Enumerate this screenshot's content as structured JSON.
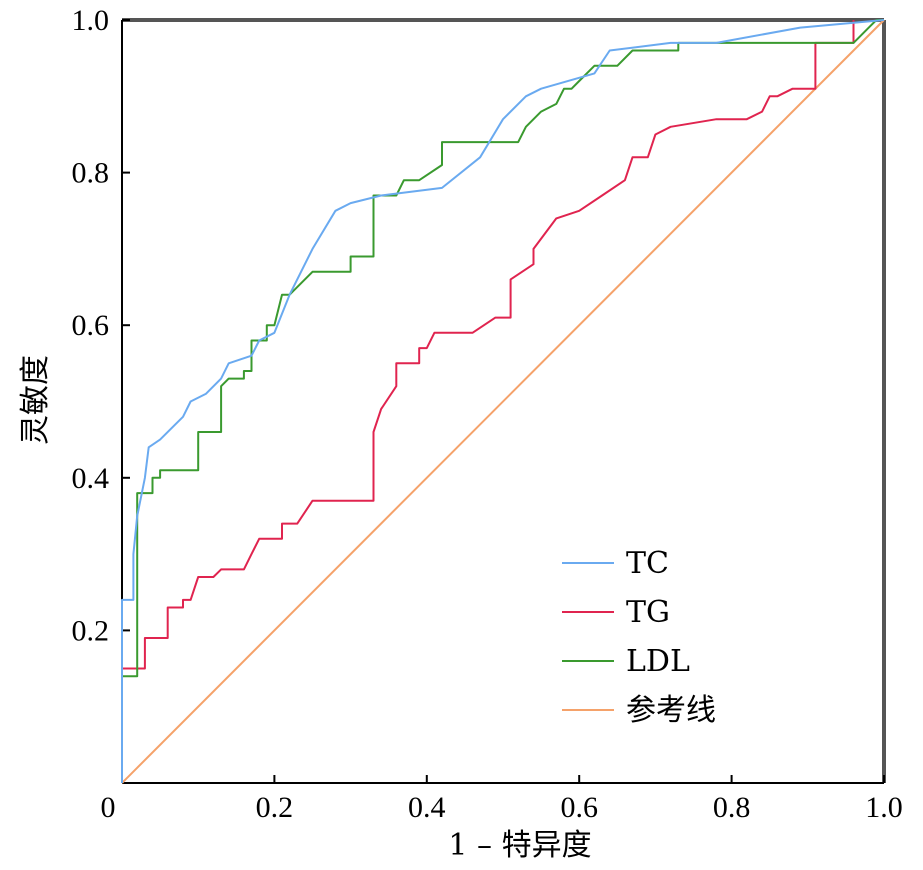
{
  "chart_data": {
    "type": "line",
    "title": "",
    "xlabel": "1 – 特异度",
    "ylabel": "灵敏度",
    "xlim": [
      0,
      1
    ],
    "ylim": [
      0,
      1
    ],
    "x_ticks": [
      "0",
      "0.2",
      "0.4",
      "0.6",
      "0.8",
      "1.0"
    ],
    "y_ticks": [
      "0.2",
      "0.4",
      "0.6",
      "0.8",
      "1.0"
    ],
    "legend_position": "bottom-right",
    "grid": false,
    "series": [
      {
        "name": "TC",
        "color": "#6aaaf0",
        "points": [
          [
            0,
            0
          ],
          [
            0,
            0.24
          ],
          [
            0.015,
            0.24
          ],
          [
            0.015,
            0.3
          ],
          [
            0.02,
            0.35
          ],
          [
            0.03,
            0.4
          ],
          [
            0.035,
            0.44
          ],
          [
            0.05,
            0.45
          ],
          [
            0.07,
            0.47
          ],
          [
            0.08,
            0.48
          ],
          [
            0.09,
            0.5
          ],
          [
            0.11,
            0.51
          ],
          [
            0.13,
            0.53
          ],
          [
            0.14,
            0.55
          ],
          [
            0.17,
            0.56
          ],
          [
            0.18,
            0.58
          ],
          [
            0.2,
            0.59
          ],
          [
            0.22,
            0.64
          ],
          [
            0.25,
            0.7
          ],
          [
            0.28,
            0.75
          ],
          [
            0.3,
            0.76
          ],
          [
            0.34,
            0.77
          ],
          [
            0.42,
            0.78
          ],
          [
            0.47,
            0.82
          ],
          [
            0.5,
            0.87
          ],
          [
            0.53,
            0.9
          ],
          [
            0.55,
            0.91
          ],
          [
            0.62,
            0.93
          ],
          [
            0.64,
            0.96
          ],
          [
            0.72,
            0.97
          ],
          [
            0.78,
            0.97
          ],
          [
            0.89,
            0.99
          ],
          [
            1.0,
            1.0
          ]
        ]
      },
      {
        "name": "TG",
        "color": "#e0244f",
        "points": [
          [
            0,
            0
          ],
          [
            0,
            0.15
          ],
          [
            0.03,
            0.15
          ],
          [
            0.03,
            0.19
          ],
          [
            0.06,
            0.19
          ],
          [
            0.06,
            0.23
          ],
          [
            0.08,
            0.23
          ],
          [
            0.08,
            0.24
          ],
          [
            0.09,
            0.24
          ],
          [
            0.1,
            0.27
          ],
          [
            0.12,
            0.27
          ],
          [
            0.13,
            0.28
          ],
          [
            0.16,
            0.28
          ],
          [
            0.17,
            0.3
          ],
          [
            0.18,
            0.32
          ],
          [
            0.21,
            0.32
          ],
          [
            0.21,
            0.34
          ],
          [
            0.23,
            0.34
          ],
          [
            0.25,
            0.37
          ],
          [
            0.33,
            0.37
          ],
          [
            0.33,
            0.46
          ],
          [
            0.34,
            0.49
          ],
          [
            0.36,
            0.52
          ],
          [
            0.36,
            0.55
          ],
          [
            0.39,
            0.55
          ],
          [
            0.39,
            0.57
          ],
          [
            0.4,
            0.57
          ],
          [
            0.41,
            0.59
          ],
          [
            0.46,
            0.59
          ],
          [
            0.49,
            0.61
          ],
          [
            0.51,
            0.61
          ],
          [
            0.51,
            0.66
          ],
          [
            0.54,
            0.68
          ],
          [
            0.54,
            0.7
          ],
          [
            0.57,
            0.74
          ],
          [
            0.6,
            0.75
          ],
          [
            0.63,
            0.77
          ],
          [
            0.66,
            0.79
          ],
          [
            0.67,
            0.82
          ],
          [
            0.69,
            0.82
          ],
          [
            0.7,
            0.85
          ],
          [
            0.72,
            0.86
          ],
          [
            0.78,
            0.87
          ],
          [
            0.82,
            0.87
          ],
          [
            0.84,
            0.88
          ],
          [
            0.85,
            0.9
          ],
          [
            0.86,
            0.9
          ],
          [
            0.88,
            0.91
          ],
          [
            0.91,
            0.91
          ],
          [
            0.91,
            0.97
          ],
          [
            0.96,
            0.97
          ],
          [
            0.96,
            1.0
          ]
        ]
      },
      {
        "name": "LDL",
        "color": "#3a9a2f",
        "points": [
          [
            0,
            0
          ],
          [
            0,
            0.14
          ],
          [
            0.02,
            0.14
          ],
          [
            0.02,
            0.38
          ],
          [
            0.04,
            0.38
          ],
          [
            0.04,
            0.4
          ],
          [
            0.05,
            0.4
          ],
          [
            0.05,
            0.41
          ],
          [
            0.08,
            0.41
          ],
          [
            0.1,
            0.41
          ],
          [
            0.1,
            0.46
          ],
          [
            0.13,
            0.46
          ],
          [
            0.13,
            0.52
          ],
          [
            0.14,
            0.53
          ],
          [
            0.16,
            0.53
          ],
          [
            0.16,
            0.54
          ],
          [
            0.17,
            0.54
          ],
          [
            0.17,
            0.58
          ],
          [
            0.19,
            0.58
          ],
          [
            0.19,
            0.6
          ],
          [
            0.2,
            0.6
          ],
          [
            0.21,
            0.64
          ],
          [
            0.22,
            0.64
          ],
          [
            0.25,
            0.67
          ],
          [
            0.3,
            0.67
          ],
          [
            0.3,
            0.69
          ],
          [
            0.33,
            0.69
          ],
          [
            0.33,
            0.77
          ],
          [
            0.36,
            0.77
          ],
          [
            0.37,
            0.79
          ],
          [
            0.39,
            0.79
          ],
          [
            0.42,
            0.81
          ],
          [
            0.42,
            0.84
          ],
          [
            0.52,
            0.84
          ],
          [
            0.53,
            0.86
          ],
          [
            0.55,
            0.88
          ],
          [
            0.57,
            0.89
          ],
          [
            0.58,
            0.91
          ],
          [
            0.59,
            0.91
          ],
          [
            0.6,
            0.92
          ],
          [
            0.62,
            0.94
          ],
          [
            0.65,
            0.94
          ],
          [
            0.67,
            0.96
          ],
          [
            0.73,
            0.96
          ],
          [
            0.73,
            0.97
          ],
          [
            0.96,
            0.97
          ],
          [
            0.98,
            0.99
          ],
          [
            0.99,
            1.0
          ],
          [
            1.0,
            1.0
          ]
        ]
      },
      {
        "name": "参考线",
        "color": "#f5a26a",
        "points": [
          [
            0,
            0
          ],
          [
            1,
            1
          ]
        ]
      }
    ]
  }
}
